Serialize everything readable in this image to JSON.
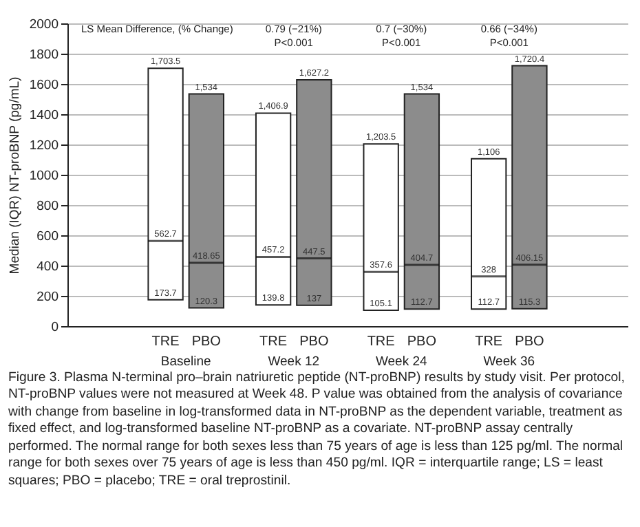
{
  "chart_data": {
    "type": "box",
    "ylabel": "Median (IQR) NT-proBNP (pg/mL)",
    "categories": [
      "Baseline",
      "Week 12",
      "Week 24",
      "Week 36"
    ],
    "series": [
      {
        "name": "TRE",
        "color": "#ffffff",
        "boxes": [
          {
            "low": 173.7,
            "q1": 173.7,
            "median": 562.7,
            "q3": 1703.5,
            "high": 1703.5
          },
          {
            "low": 139.8,
            "q1": 139.8,
            "median": 457.2,
            "q3": 1406.9,
            "high": 1406.9
          },
          {
            "low": 105.1,
            "q1": 105.1,
            "median": 357.6,
            "q3": 1203.5,
            "high": 1203.5
          },
          {
            "low": 112.7,
            "q1": 112.7,
            "median": 328,
            "q3": 1106,
            "high": 1106
          }
        ]
      },
      {
        "name": "PBO",
        "color": "#8c8c8c",
        "boxes": [
          {
            "low": 120.3,
            "q1": 120.3,
            "median": 418.65,
            "q3": 1534,
            "high": 1534
          },
          {
            "low": 137,
            "q1": 137,
            "median": 447.5,
            "q3": 1627.2,
            "high": 1627.2
          },
          {
            "low": 112.7,
            "q1": 112.7,
            "median": 404.7,
            "q3": 1534,
            "high": 1534
          },
          {
            "low": 115.3,
            "q1": 115.3,
            "median": 406.15,
            "q3": 1720.4,
            "high": 1720.4
          }
        ]
      }
    ],
    "ylim": [
      0,
      2000
    ],
    "yticks": [
      0,
      200,
      400,
      600,
      800,
      1000,
      1200,
      1400,
      1600,
      1800,
      2000
    ],
    "grid": "y",
    "legend": false,
    "annotations": [
      {
        "text": "1,703.5",
        "x": "Baseline",
        "y": 1703.5
      },
      {
        "text": "562.7",
        "x": "Baseline",
        "y": 562.7
      },
      {
        "text": "173.7",
        "x": "Baseline",
        "y": 173.7
      },
      {
        "text": "1,534",
        "x": "Baseline",
        "y": 1534
      },
      {
        "text": "418.65",
        "x": "Baseline",
        "y": 418.65
      },
      {
        "text": "120.3",
        "x": "Baseline",
        "y": 120.3
      },
      {
        "text": "1,406.9",
        "x": "Week 12",
        "y": 1406.9
      },
      {
        "text": "457.2",
        "x": "Week 12",
        "y": 457.2
      },
      {
        "text": "139.8",
        "x": "Week 12",
        "y": 139.8
      },
      {
        "text": "1,627.2",
        "x": "Week 12",
        "y": 1627.2
      },
      {
        "text": "447.5",
        "x": "Week 12",
        "y": 447.5
      },
      {
        "text": "137",
        "x": "Week 12",
        "y": 137
      },
      {
        "text": "1,203.5",
        "x": "Week 24",
        "y": 1203.5
      },
      {
        "text": "357.6",
        "x": "Week 24",
        "y": 357.6
      },
      {
        "text": "105.1",
        "x": "Week 24",
        "y": 105.1
      },
      {
        "text": "1,534",
        "x": "Week 24",
        "y": 1534
      },
      {
        "text": "404.7",
        "x": "Week 24",
        "y": 404.7
      },
      {
        "text": "112.7",
        "x": "Week 24",
        "y": 112.7
      },
      {
        "text": "1,106",
        "x": "Week 36",
        "y": 1106
      },
      {
        "text": "328",
        "x": "Week 36",
        "y": 328
      },
      {
        "text": "112.7",
        "x": "Week 36",
        "y": 112.7
      },
      {
        "text": "1,720.4",
        "x": "Week 36",
        "y": 1720.4
      },
      {
        "text": "406.15",
        "x": "Week 36",
        "y": 406.15
      },
      {
        "text": "115.3",
        "x": "Week 36",
        "y": 115.3
      },
      "LS Mean Difference, (% Change)",
      "0.79 (−21%)",
      "P<0.001",
      "0.7 (−30%)",
      "P<0.001",
      "0.66 (−34%)",
      "P<0.001",
      "Figure 3. Plasma N-terminal pro–brain natriuretic peptide (NT-proBNP) results by study visit. Per protocol, NT-proBNP values were not measured at Week 48. P value was obtained from the analysis of covariance with change from baseline in log-transformed data in NT-proBNP as the dependent variable, treatment as fixed effect, and log-transformed baseline NT-proBNP as a covariate. NT-proBNP assay centrally performed. The normal range for both sexes less than 75 years of age is less than 125 pg/ml. The normal range for both sexes over 75 years of age is less than 450 pg/ml. IQR = interquartile range; LS = least squares; PBO = placebo; TRE = oral treprostinil."
    ]
  }
}
